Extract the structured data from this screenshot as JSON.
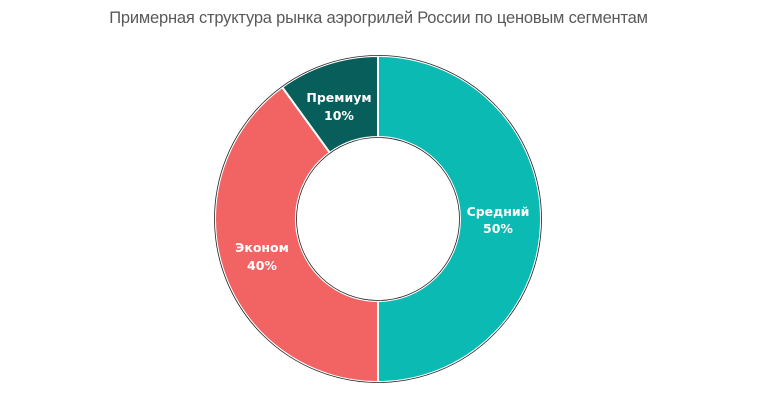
{
  "title": "Примерная структура рынка аэрогрилей России по ценовым сегментам",
  "chart_data": {
    "type": "pie",
    "variant": "donut",
    "title": "Примерная структура рынка аэрогрилей России по ценовым сегментам",
    "categories": [
      "Средний",
      "Эконом",
      "Премиум"
    ],
    "values": [
      50,
      40,
      10
    ],
    "unit": "%",
    "labels": [
      "Средний 50%",
      "Эконом 40%",
      "Премиум 10%"
    ],
    "colors": [
      "#0bbab2",
      "#f26464",
      "#075e5a"
    ],
    "start_angle": "12 o'clock",
    "direction": "clockwise",
    "legend": "none (data labels inside segments)"
  },
  "segments": [
    {
      "name": "Средний",
      "value": "50%",
      "color": "#0bbab2"
    },
    {
      "name": "Эконом",
      "value": "40%",
      "color": "#f26464"
    },
    {
      "name": "Премиум",
      "value": "10%",
      "color": "#075e5a"
    }
  ]
}
